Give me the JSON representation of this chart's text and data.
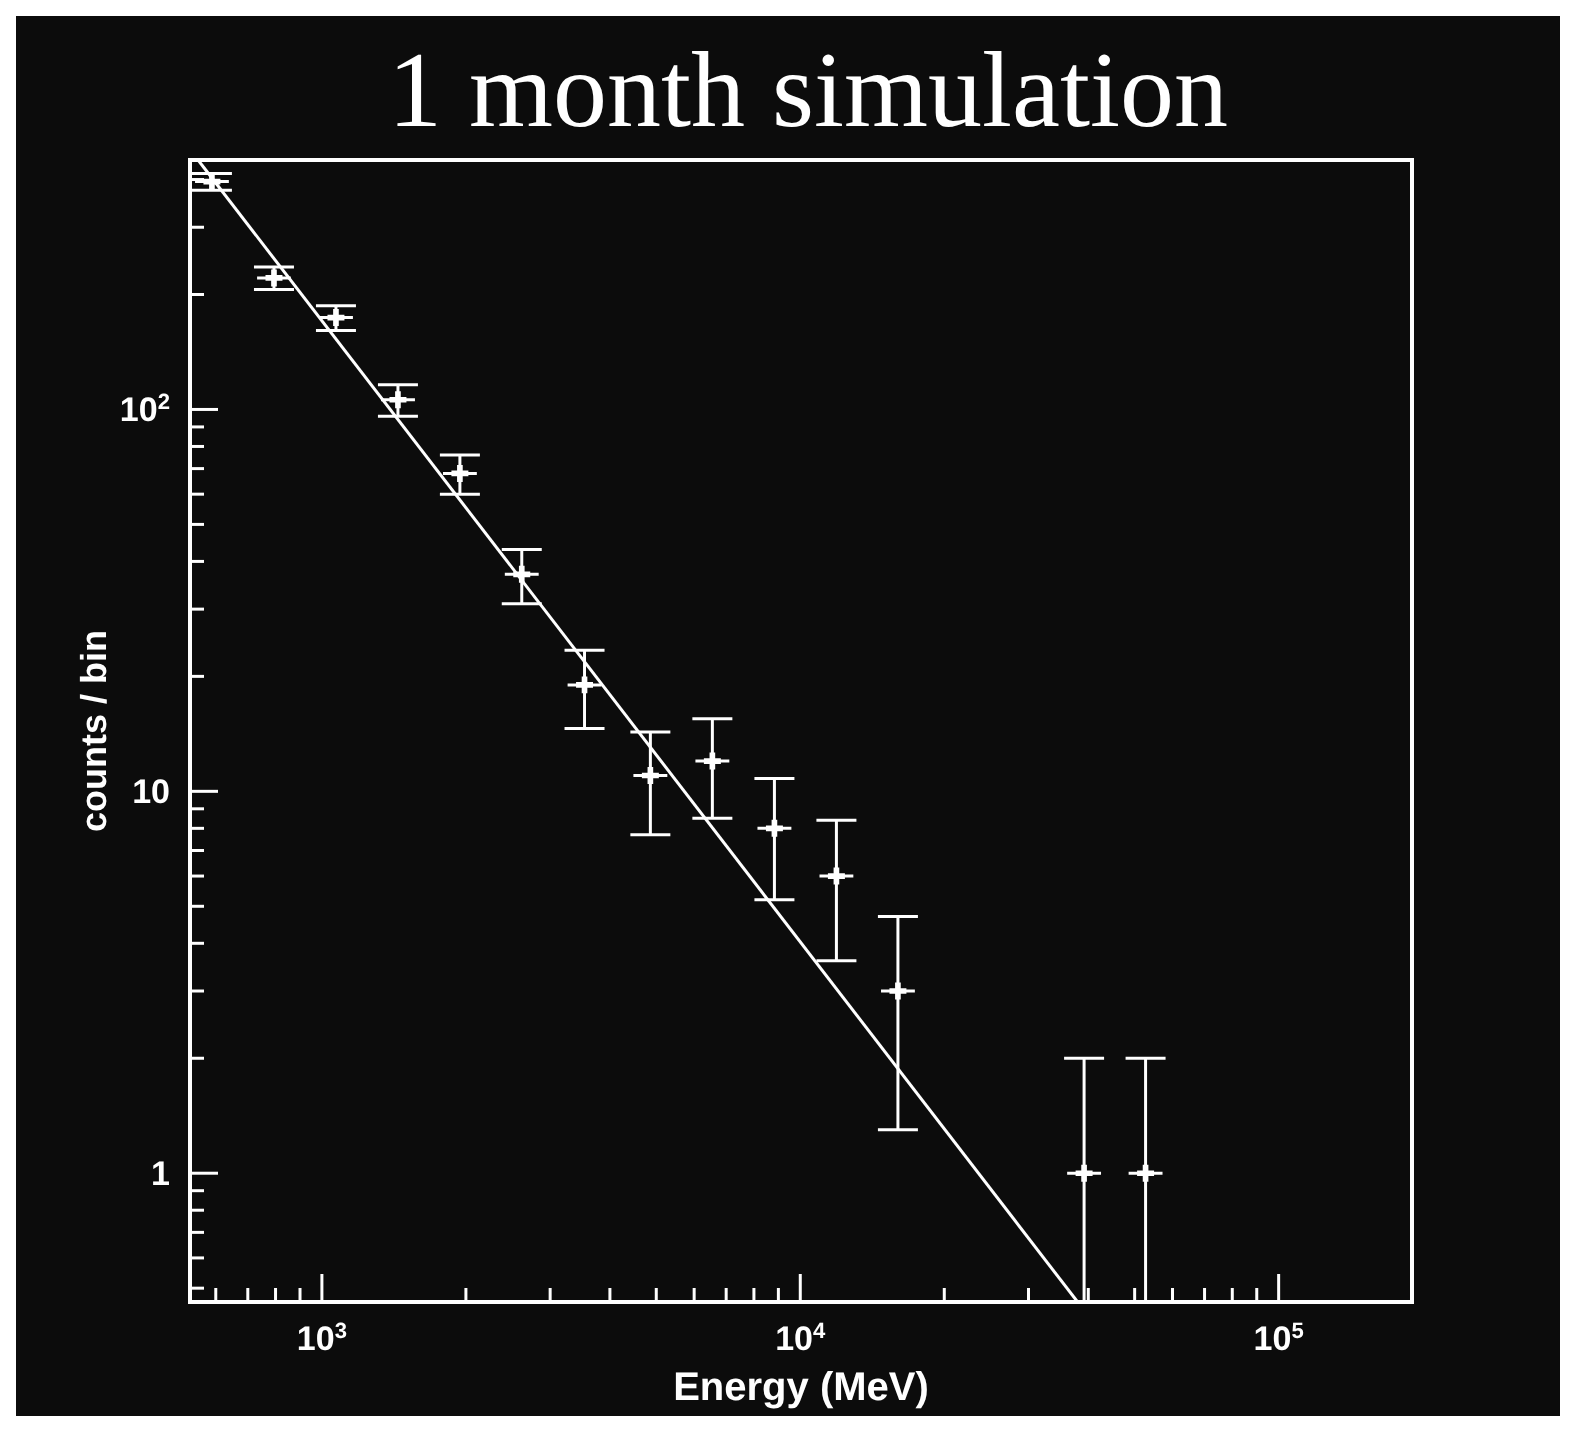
{
  "chart_data": {
    "type": "scatter",
    "title": "1 month simulation",
    "xlabel": "Energy (MeV)",
    "ylabel": "counts / bin",
    "log": "xy",
    "grid": false,
    "legend": false,
    "xlim": [
      530,
      190000
    ],
    "xticks": [
      {
        "value": 600,
        "label": null
      },
      {
        "value": 700,
        "label": null
      },
      {
        "value": 800,
        "label": null
      },
      {
        "value": 900,
        "label": null
      },
      {
        "value": 1000,
        "label": "10$^{3}$"
      },
      {
        "value": 2000,
        "label": null
      },
      {
        "value": 3000,
        "label": null
      },
      {
        "value": 4000,
        "label": null
      },
      {
        "value": 5000,
        "label": null
      },
      {
        "value": 6000,
        "label": null
      },
      {
        "value": 7000,
        "label": null
      },
      {
        "value": 8000,
        "label": null
      },
      {
        "value": 9000,
        "label": null
      },
      {
        "value": 10000,
        "label": "10$^{4}$"
      },
      {
        "value": 20000,
        "label": null
      },
      {
        "value": 30000,
        "label": null
      },
      {
        "value": 40000,
        "label": null
      },
      {
        "value": 50000,
        "label": null
      },
      {
        "value": 60000,
        "label": null
      },
      {
        "value": 70000,
        "label": null
      },
      {
        "value": 80000,
        "label": null
      },
      {
        "value": 90000,
        "label": null
      },
      {
        "value": 100000,
        "label": "10$^{5}$"
      }
    ],
    "ylim": [
      0.46,
      450
    ],
    "yticks": [
      {
        "value": 0.5,
        "label": null
      },
      {
        "value": 0.6,
        "label": null
      },
      {
        "value": 0.7,
        "label": null
      },
      {
        "value": 0.8,
        "label": null
      },
      {
        "value": 0.9,
        "label": null
      },
      1,
      {
        "value": 2,
        "label": null
      },
      {
        "value": 3,
        "label": null
      },
      {
        "value": 4,
        "label": null
      },
      {
        "value": 5,
        "label": null
      },
      {
        "value": 6,
        "label": null
      },
      {
        "value": 7,
        "label": null
      },
      {
        "value": 8,
        "label": null
      },
      {
        "value": 9,
        "label": null
      },
      10,
      {
        "value": 20,
        "label": null
      },
      {
        "value": 30,
        "label": null
      },
      {
        "value": 40,
        "label": null
      },
      {
        "value": 50,
        "label": null
      },
      {
        "value": 60,
        "label": null
      },
      {
        "value": 70,
        "label": null
      },
      {
        "value": 80,
        "label": null
      },
      {
        "value": 90,
        "label": null
      },
      {
        "value": 100,
        "label": "10$^{2}$"
      },
      {
        "value": 200,
        "label": null
      },
      {
        "value": 300,
        "label": null
      },
      {
        "value": 400,
        "label": null
      }
    ],
    "series": [
      {
        "type": "scatter",
        "marker": "cross",
        "color": "#ffffff",
        "x": [
          589,
          794,
          1070,
          1442,
          1943,
          2617,
          3540,
          4860,
          6550,
          8830,
          11900,
          16000,
          39200,
          52700
        ],
        "values": [
          395,
          221,
          174,
          106,
          68,
          37,
          19,
          11,
          12,
          8,
          6,
          3,
          1,
          1
        ],
        "errors": [
          20,
          15,
          13,
          10,
          8,
          6,
          4.4,
          3.3,
          3.5,
          2.8,
          2.4,
          1.7,
          [
            0.46,
            2
          ],
          [
            0.46,
            2
          ]
        ],
        "xerrors": [
          [
            543,
            639
          ],
          [
            732,
            861
          ],
          [
            986,
            1161
          ],
          [
            1329,
            1565
          ],
          [
            1791,
            2108
          ],
          [
            2412,
            2839
          ],
          [
            3263,
            3841
          ],
          [
            4479,
            5273
          ],
          [
            6037,
            7107
          ],
          [
            8138,
            9581
          ],
          [
            10970,
            12910
          ],
          [
            14750,
            17360
          ],
          [
            36130,
            42530
          ],
          [
            48570,
            57180
          ]
        ]
      },
      {
        "type": "line",
        "color": "#ffffff",
        "x": [
          551,
          38000
        ],
        "values": [
          450,
          0.46
        ]
      }
    ]
  }
}
